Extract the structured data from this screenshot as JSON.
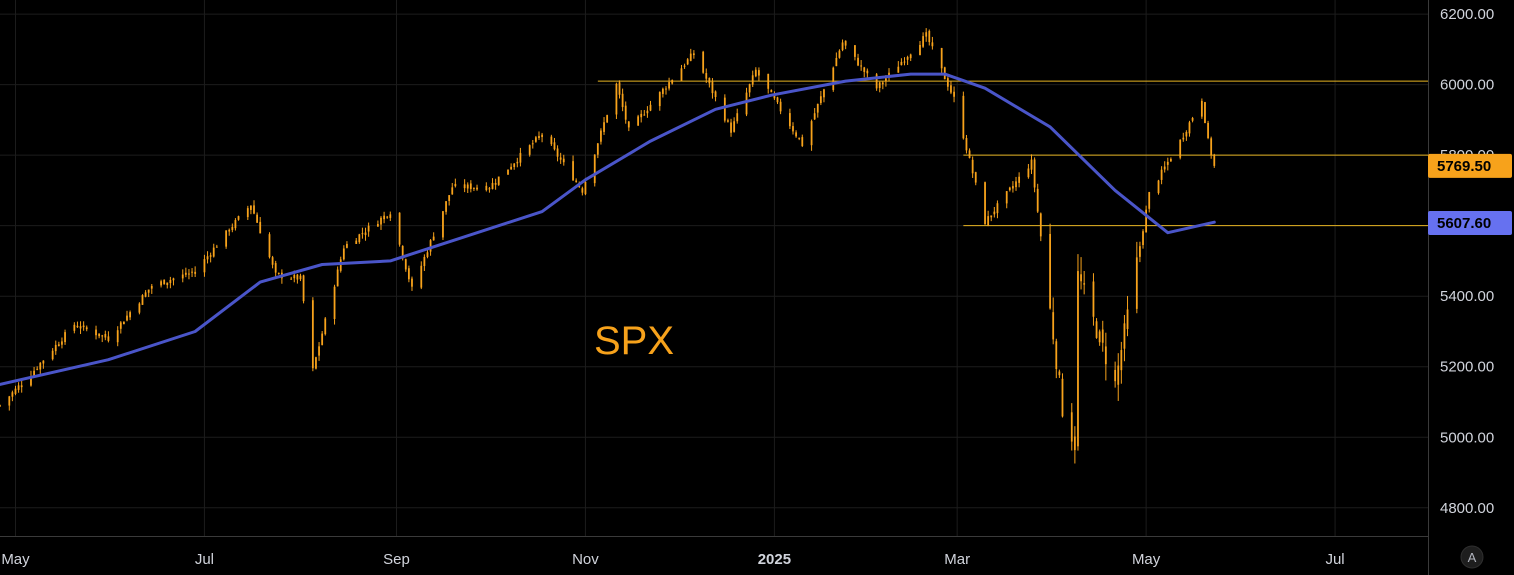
{
  "chart_data": {
    "type": "candlestick",
    "symbol": "SPX",
    "colors": {
      "background": "#000000",
      "candle": "#f7a21b",
      "moving_average": "#4a55c9",
      "levels": "#e6b422",
      "grid": "#1c1c1c",
      "axis_text": "#d1d4dc",
      "tag_orange": "#f7a21b",
      "tag_blue": "#6671f0"
    },
    "x_axis": {
      "range": [
        "2024-04-26",
        "2025-07-31"
      ],
      "tick_labels": [
        {
          "date": "2024-05-01",
          "label": "May"
        },
        {
          "date": "2024-07-01",
          "label": "Jul"
        },
        {
          "date": "2024-09-01",
          "label": "Sep"
        },
        {
          "date": "2024-11-01",
          "label": "Nov"
        },
        {
          "date": "2025-01-01",
          "label": "2025",
          "bold": true
        },
        {
          "date": "2025-03-01",
          "label": "Mar"
        },
        {
          "date": "2025-05-01",
          "label": "May"
        },
        {
          "date": "2025-07-01",
          "label": "Jul"
        }
      ]
    },
    "y_axis": {
      "range": [
        4720,
        6240
      ],
      "ticks": [
        {
          "value": 4800,
          "label": "4800.00"
        },
        {
          "value": 5000,
          "label": "5000.00"
        },
        {
          "value": 5200,
          "label": "5200.00"
        },
        {
          "value": 5400,
          "label": "5400.00"
        },
        {
          "value": 5600,
          "label": "5600.00"
        },
        {
          "value": 5800,
          "label": "5800.00"
        },
        {
          "value": 6000,
          "label": "6000.00"
        },
        {
          "value": 6200,
          "label": "6200.00"
        }
      ]
    },
    "price_path": [
      [
        "2024-04-26",
        5090
      ],
      [
        "2024-05-06",
        5180
      ],
      [
        "2024-05-20",
        5320
      ],
      [
        "2024-05-31",
        5280
      ],
      [
        "2024-06-14",
        5430
      ],
      [
        "2024-06-28",
        5470
      ],
      [
        "2024-07-10",
        5600
      ],
      [
        "2024-07-16",
        5660
      ],
      [
        "2024-07-24",
        5460
      ],
      [
        "2024-08-01",
        5450
      ],
      [
        "2024-08-05",
        5190
      ],
      [
        "2024-08-15",
        5540
      ],
      [
        "2024-08-30",
        5640
      ],
      [
        "2024-09-06",
        5420
      ],
      [
        "2024-09-19",
        5710
      ],
      [
        "2024-10-01",
        5710
      ],
      [
        "2024-10-18",
        5860
      ],
      [
        "2024-10-31",
        5700
      ],
      [
        "2024-11-11",
        6000
      ],
      [
        "2024-11-15",
        5870
      ],
      [
        "2024-12-06",
        6090
      ],
      [
        "2024-12-18",
        5870
      ],
      [
        "2024-12-26",
        6040
      ],
      [
        "2025-01-10",
        5830
      ],
      [
        "2025-01-23",
        6120
      ],
      [
        "2025-02-03",
        5990
      ],
      [
        "2025-02-19",
        6140
      ],
      [
        "2025-02-28",
        5960
      ],
      [
        "2025-03-10",
        5610
      ],
      [
        "2025-03-25",
        5780
      ],
      [
        "2025-04-04",
        5080
      ],
      [
        "2025-04-08",
        4980
      ],
      [
        "2025-04-09",
        5460
      ],
      [
        "2025-04-21",
        5150
      ],
      [
        "2025-05-02",
        5690
      ],
      [
        "2025-05-12",
        5840
      ],
      [
        "2025-05-19",
        5960
      ],
      [
        "2025-05-21",
        5840
      ],
      [
        "2025-05-23",
        5769.5
      ]
    ],
    "moving_average": {
      "path": [
        [
          "2024-04-26",
          5150
        ],
        [
          "2024-05-31",
          5220
        ],
        [
          "2024-06-28",
          5300
        ],
        [
          "2024-07-19",
          5440
        ],
        [
          "2024-08-08",
          5490
        ],
        [
          "2024-08-30",
          5500
        ],
        [
          "2024-09-20",
          5560
        ],
        [
          "2024-10-18",
          5640
        ],
        [
          "2024-11-01",
          5730
        ],
        [
          "2024-11-22",
          5840
        ],
        [
          "2024-12-13",
          5930
        ],
        [
          "2024-12-31",
          5970
        ],
        [
          "2025-01-24",
          6010
        ],
        [
          "2025-02-14",
          6030
        ],
        [
          "2025-02-25",
          6030
        ],
        [
          "2025-03-10",
          5990
        ],
        [
          "2025-03-31",
          5880
        ],
        [
          "2025-04-21",
          5700
        ],
        [
          "2025-05-08",
          5580
        ],
        [
          "2025-05-23",
          5610
        ]
      ],
      "last_value": 5607.6,
      "last_label": "5607.60"
    },
    "last_price": 5769.5,
    "last_price_label": "5769.50",
    "horizontal_levels": [
      {
        "value": 6010,
        "from": "2024-11-05"
      },
      {
        "value": 5800,
        "from": "2025-03-03"
      },
      {
        "value": 5600,
        "from": "2025-03-03"
      }
    ],
    "auto_scale_label": "A"
  }
}
